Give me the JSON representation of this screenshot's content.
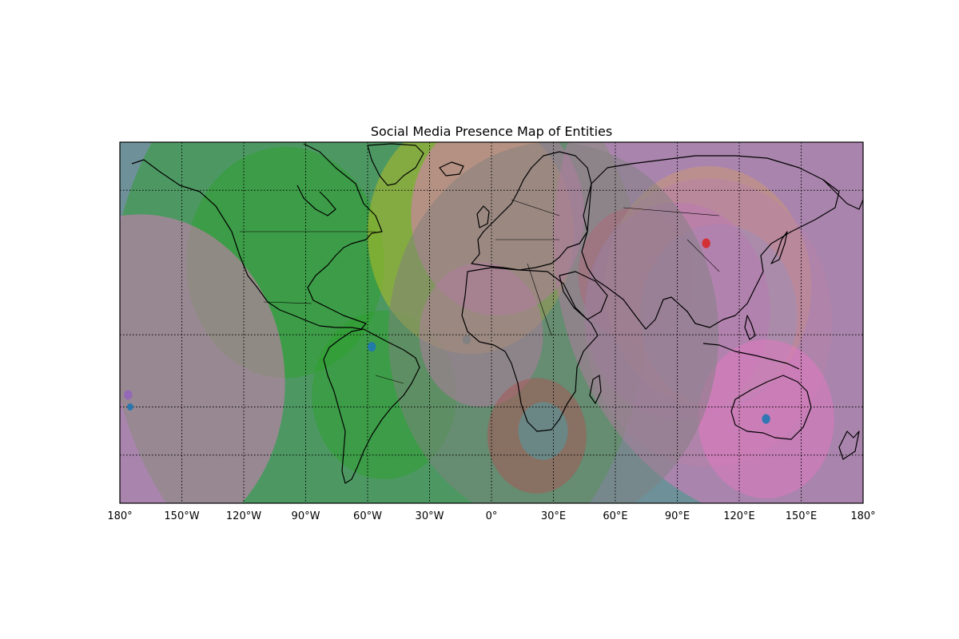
{
  "title": "Social Media Presence Map of Entities",
  "map": {
    "projection": "equirectangular",
    "lon_range": [
      -180,
      180
    ],
    "lat_range": [
      -60,
      90
    ],
    "ocean_color": "#6e9199",
    "grid": true,
    "parallels": [
      -40,
      -20,
      10,
      70
    ],
    "meridians": [
      -150,
      -120,
      -90,
      -60,
      -30,
      0,
      30,
      60,
      90,
      120,
      150
    ],
    "x_tick_labels": [
      {
        "lon": -180,
        "label": "180°"
      },
      {
        "lon": -150,
        "label": "150°W"
      },
      {
        "lon": -120,
        "label": "120°W"
      },
      {
        "lon": -90,
        "label": "90°W"
      },
      {
        "lon": -60,
        "label": "60°W"
      },
      {
        "lon": -30,
        "label": "30°W"
      },
      {
        "lon": 0,
        "label": "0°"
      },
      {
        "lon": 30,
        "label": "30°E"
      },
      {
        "lon": 60,
        "label": "60°E"
      },
      {
        "lon": 90,
        "label": "90°E"
      },
      {
        "lon": 120,
        "label": "120°E"
      },
      {
        "lon": 150,
        "label": "150°E"
      },
      {
        "lon": 180,
        "label": "180°"
      }
    ]
  },
  "chart_data": {
    "type": "scatter",
    "encoding": "entity locations with translucent presence circles",
    "points": [
      {
        "lon": -100,
        "lat": 40,
        "radius_deg": 48,
        "color": "#2ca02c"
      },
      {
        "lon": -52,
        "lat": -15,
        "radius_deg": 35,
        "color": "#2ca02c"
      },
      {
        "lon": -55,
        "lat": 20,
        "radius_deg": 130,
        "color": "#2ca02c"
      },
      {
        "lon": -10,
        "lat": 52,
        "radius_deg": 50,
        "color": "#bcbd22"
      },
      {
        "lon": 3,
        "lat": 60,
        "radius_deg": 42,
        "color": "#e377c2"
      },
      {
        "lon": -5,
        "lat": 10,
        "radius_deg": 30,
        "color": "#e377c2"
      },
      {
        "lon": 22,
        "lat": -32,
        "radius_deg": 24,
        "color": "#d62728"
      },
      {
        "lon": 25,
        "lat": -30,
        "radius_deg": 12,
        "color": "#17becf"
      },
      {
        "lon": 70,
        "lat": 35,
        "radius_deg": 28,
        "color": "#d62728"
      },
      {
        "lon": 105,
        "lat": 30,
        "radius_deg": 50,
        "color": "#bcbd22"
      },
      {
        "lon": 110,
        "lat": 18,
        "radius_deg": 38,
        "color": "#17becf"
      },
      {
        "lon": 90,
        "lat": 20,
        "radius_deg": 45,
        "color": "#9467bd"
      },
      {
        "lon": 105,
        "lat": 15,
        "radius_deg": 60,
        "color": "#8c8c8c"
      },
      {
        "lon": 133,
        "lat": -25,
        "radius_deg": 33,
        "color": "#e377c2"
      },
      {
        "lon": 150,
        "lat": 50,
        "radius_deg": 120,
        "color": "#e377c2"
      },
      {
        "lon": -170,
        "lat": -10,
        "radius_deg": 70,
        "color": "#e377c2"
      },
      {
        "lon": 30,
        "lat": 10,
        "radius_deg": 80,
        "color": "#7f7f7f"
      },
      {
        "lon": -58,
        "lat": 5,
        "radius_deg": 2,
        "color": "#1f77b4"
      },
      {
        "lon": -176,
        "lat": -15,
        "radius_deg": 2,
        "color": "#9467bd"
      },
      {
        "lon": -175,
        "lat": -20,
        "radius_deg": 1.5,
        "color": "#1f77b4"
      },
      {
        "lon": 104,
        "lat": 48,
        "radius_deg": 2,
        "color": "#d62728"
      },
      {
        "lon": 133,
        "lat": -25,
        "radius_deg": 2,
        "color": "#1f77b4"
      },
      {
        "lon": -12,
        "lat": 8,
        "radius_deg": 2,
        "color": "#7f7f7f"
      }
    ]
  }
}
